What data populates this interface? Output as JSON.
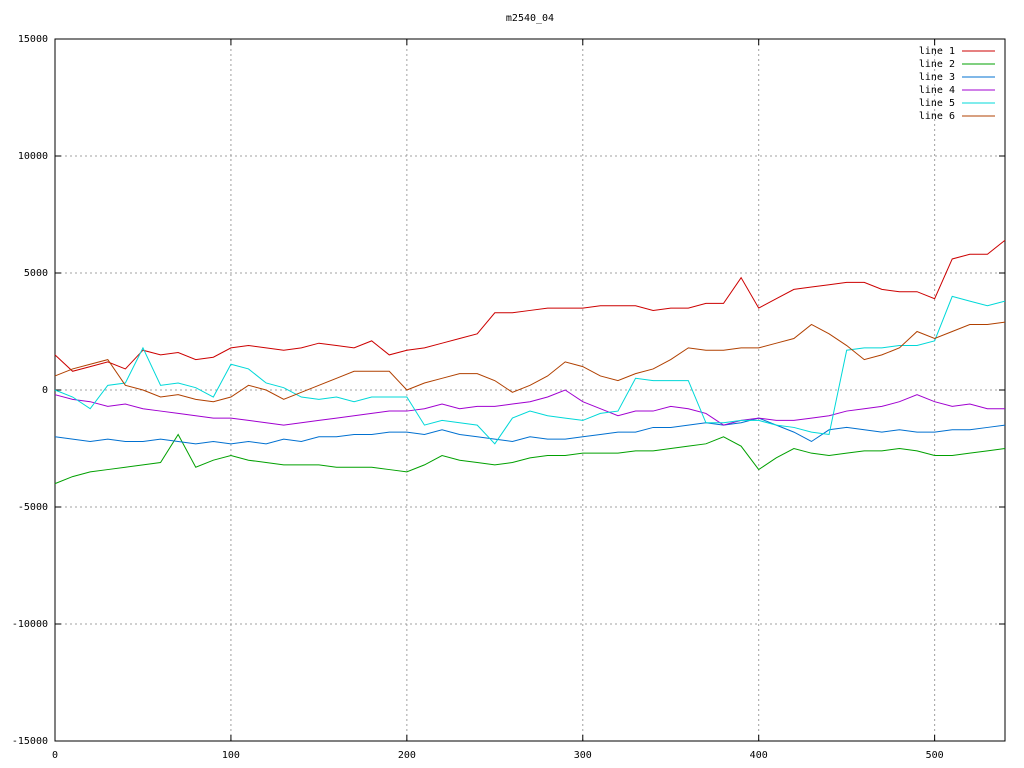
{
  "chart_data": {
    "type": "line",
    "title": "m2540_04",
    "x": [
      0,
      10,
      20,
      30,
      40,
      50,
      60,
      70,
      80,
      90,
      100,
      110,
      120,
      130,
      140,
      150,
      160,
      170,
      180,
      190,
      200,
      210,
      220,
      230,
      240,
      250,
      260,
      270,
      280,
      290,
      300,
      310,
      320,
      330,
      340,
      350,
      360,
      370,
      380,
      390,
      400,
      410,
      420,
      430,
      440,
      450,
      460,
      470,
      480,
      490,
      500,
      510,
      520,
      530,
      540
    ],
    "series": [
      {
        "name": "line 1",
        "color": "#cc0000",
        "values": [
          1500,
          800,
          1000,
          1200,
          900,
          1700,
          1500,
          1600,
          1300,
          1400,
          1800,
          1900,
          1800,
          1700,
          1800,
          2000,
          1900,
          1800,
          2100,
          1500,
          1700,
          1800,
          2000,
          2200,
          2400,
          3300,
          3300,
          3400,
          3500,
          3500,
          3500,
          3600,
          3600,
          3600,
          3400,
          3500,
          3500,
          3700,
          3700,
          4800,
          3500,
          3900,
          4300,
          4400,
          4500,
          4600,
          4600,
          4300,
          4200,
          4200,
          3900,
          5600,
          5800,
          5800,
          6400
        ]
      },
      {
        "name": "line 2",
        "color": "#00a000",
        "values": [
          -4000,
          -3700,
          -3500,
          -3400,
          -3300,
          -3200,
          -3100,
          -1900,
          -3300,
          -3000,
          -2800,
          -3000,
          -3100,
          -3200,
          -3200,
          -3200,
          -3300,
          -3300,
          -3300,
          -3400,
          -3500,
          -3200,
          -2800,
          -3000,
          -3100,
          -3200,
          -3100,
          -2900,
          -2800,
          -2800,
          -2700,
          -2700,
          -2700,
          -2600,
          -2600,
          -2500,
          -2400,
          -2300,
          -2000,
          -2400,
          -3400,
          -2900,
          -2500,
          -2700,
          -2800,
          -2700,
          -2600,
          -2600,
          -2500,
          -2600,
          -2800,
          -2800,
          -2700,
          -2600,
          -2500
        ]
      },
      {
        "name": "line 3",
        "color": "#0070d0",
        "values": [
          -2000,
          -2100,
          -2200,
          -2100,
          -2200,
          -2200,
          -2100,
          -2200,
          -2300,
          -2200,
          -2300,
          -2200,
          -2300,
          -2100,
          -2200,
          -2000,
          -2000,
          -1900,
          -1900,
          -1800,
          -1800,
          -1900,
          -1700,
          -1900,
          -2000,
          -2100,
          -2200,
          -2000,
          -2100,
          -2100,
          -2000,
          -1900,
          -1800,
          -1800,
          -1600,
          -1600,
          -1500,
          -1400,
          -1500,
          -1400,
          -1200,
          -1500,
          -1800,
          -2200,
          -1700,
          -1600,
          -1700,
          -1800,
          -1700,
          -1800,
          -1800,
          -1700,
          -1700,
          -1600,
          -1500
        ]
      },
      {
        "name": "line 4",
        "color": "#a000d0",
        "values": [
          -200,
          -400,
          -500,
          -700,
          -600,
          -800,
          -900,
          -1000,
          -1100,
          -1200,
          -1200,
          -1300,
          -1400,
          -1500,
          -1400,
          -1300,
          -1200,
          -1100,
          -1000,
          -900,
          -900,
          -800,
          -600,
          -800,
          -700,
          -700,
          -600,
          -500,
          -300,
          0,
          -500,
          -800,
          -1100,
          -900,
          -900,
          -700,
          -800,
          -1000,
          -1500,
          -1300,
          -1200,
          -1300,
          -1300,
          -1200,
          -1100,
          -900,
          -800,
          -700,
          -500,
          -200,
          -500,
          -700,
          -600,
          -800,
          -800
        ]
      },
      {
        "name": "line 5",
        "color": "#00d8d8",
        "values": [
          0,
          -300,
          -800,
          200,
          300,
          1800,
          200,
          300,
          100,
          -300,
          1100,
          900,
          300,
          100,
          -300,
          -400,
          -300,
          -500,
          -300,
          -300,
          -300,
          -1500,
          -1300,
          -1400,
          -1500,
          -2300,
          -1200,
          -900,
          -1100,
          -1200,
          -1300,
          -1000,
          -900,
          500,
          400,
          400,
          400,
          -1400,
          -1400,
          -1300,
          -1300,
          -1500,
          -1600,
          -1800,
          -1900,
          1700,
          1800,
          1800,
          1900,
          1900,
          2100,
          4000,
          3800,
          3600,
          3800
        ]
      },
      {
        "name": "line 6",
        "color": "#b04000",
        "values": [
          600,
          900,
          1100,
          1300,
          200,
          0,
          -300,
          -200,
          -400,
          -500,
          -300,
          200,
          0,
          -400,
          -100,
          200,
          500,
          800,
          800,
          800,
          0,
          300,
          500,
          700,
          700,
          400,
          -100,
          200,
          600,
          1200,
          1000,
          600,
          400,
          700,
          900,
          1300,
          1800,
          1700,
          1700,
          1800,
          1800,
          2000,
          2200,
          2800,
          2400,
          1900,
          1300,
          1500,
          1800,
          2500,
          2200,
          2500,
          2800,
          2800,
          2900
        ]
      }
    ],
    "xlim": [
      0,
      540
    ],
    "xticks": [
      0,
      100,
      200,
      300,
      400,
      500
    ],
    "ylim": [
      -15000,
      15000
    ],
    "yticks": [
      -15000,
      -10000,
      -5000,
      0,
      5000,
      10000,
      15000
    ],
    "grid": true,
    "legend": "top-right"
  }
}
